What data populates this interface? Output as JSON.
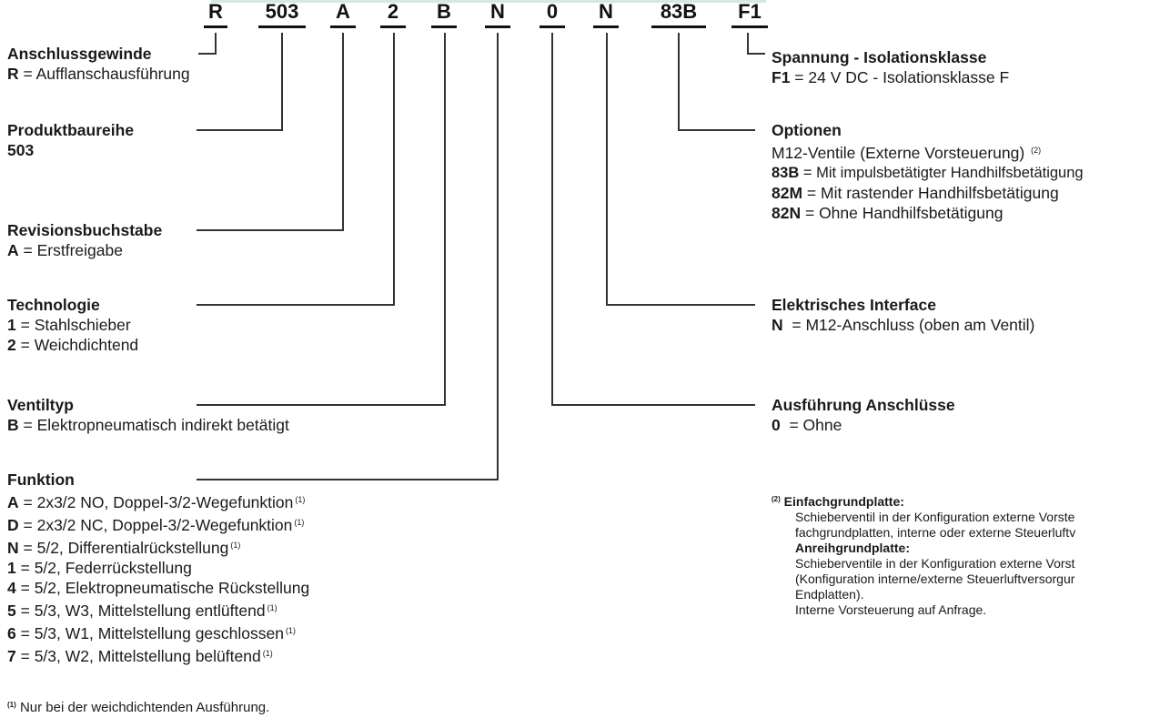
{
  "code": [
    "R",
    "503",
    "A",
    "2",
    "B",
    "N",
    "0",
    "N",
    "83B",
    "F1"
  ],
  "left": [
    {
      "id": "anschluss",
      "title": "Anschlussgewinde",
      "rows": [
        {
          "key": "R",
          "sep": " = ",
          "text": "Aufflanschausführung"
        }
      ]
    },
    {
      "id": "produkt",
      "title": "Produktbaureihe",
      "rows": [
        {
          "key": "503",
          "sep": "",
          "text": ""
        }
      ]
    },
    {
      "id": "revision",
      "title": "Revisionsbuchstabe",
      "rows": [
        {
          "key": "A",
          "sep": " = ",
          "text": "Erstfreigabe"
        }
      ]
    },
    {
      "id": "technologie",
      "title": "Technologie",
      "rows": [
        {
          "key": "1",
          "sep": " = ",
          "text": "Stahlschieber"
        },
        {
          "key": "2",
          "sep": " = ",
          "text": "Weichdichtend"
        }
      ]
    },
    {
      "id": "ventiltyp",
      "title": "Ventiltyp",
      "rows": [
        {
          "key": "B",
          "sep": " = ",
          "text": "Elektropneumatisch indirekt betätigt"
        }
      ]
    },
    {
      "id": "funktion",
      "title": "Funktion",
      "rows": [
        {
          "key": "A",
          "sep": " = ",
          "text": "2x3/2 NO, Doppel-3/2-Wegefunktion",
          "fn": "(1)"
        },
        {
          "key": "D",
          "sep": " = ",
          "text": "2x3/2 NC, Doppel-3/2-Wegefunktion",
          "fn": "(1)"
        },
        {
          "key": "N",
          "sep": " = ",
          "text": "5/2, Differentialrückstellung",
          "fn": "(1)"
        },
        {
          "key": "1",
          "sep": " = ",
          "text": "5/2, Federrückstellung"
        },
        {
          "key": "4",
          "sep": " = ",
          "text": "5/2, Elektropneumatische Rückstellung"
        },
        {
          "key": "5",
          "sep": " = ",
          "text": "5/3, W3, Mittelstellung entlüftend",
          "fn": "(1)"
        },
        {
          "key": "6",
          "sep": " = ",
          "text": "5/3, W1, Mittelstellung geschlossen",
          "fn": "(1)"
        },
        {
          "key": "7",
          "sep": " = ",
          "text": "5/3, W2, Mittelstellung belüftend",
          "fn": "(1)"
        }
      ]
    }
  ],
  "footnote1": {
    "mark": "(1)",
    "text": "Nur bei der weichdichtenden Ausführung."
  },
  "right": [
    {
      "id": "spannung",
      "title": "Spannung - Isolationsklasse",
      "rows": [
        {
          "key": "F1",
          "sep": " = ",
          "text": "24 V DC - Isolationsklasse F"
        }
      ]
    },
    {
      "id": "optionen",
      "title": "Optionen",
      "intro": "M12-Ventile (Externe Vorsteuerung)",
      "intro_fn": "(2)",
      "rows": [
        {
          "key": "83B",
          "sep": " = ",
          "text": "Mit impulsbetätigter Handhilfsbetätigung"
        },
        {
          "key": "82M",
          "sep": " = ",
          "text": "Mit rastender Handhilfsbetätigung"
        },
        {
          "key": "82N",
          "sep": " = ",
          "text": "Ohne Handhilfsbetätigung"
        }
      ]
    },
    {
      "id": "interface",
      "title": "Elektrisches Interface",
      "rows": [
        {
          "key": "N",
          "sep": "  = ",
          "text": "M12-Anschluss (oben am Ventil)"
        }
      ]
    },
    {
      "id": "anschluesse",
      "title": "Ausführung Anschlüsse",
      "rows": [
        {
          "key": "0",
          "sep": "  = ",
          "text": "Ohne"
        }
      ]
    }
  ],
  "footnote2": {
    "mark": "(2)",
    "h1": "Einfachgrundplatte:",
    "l1": "Schieberventil in der Konfiguration externe Vorste",
    "l2": "fachgrundplatten, interne oder externe Steuerluftv",
    "h2": "Anreihgrundplatte:",
    "l3": "Schieberventile in der Konfiguration externe Vorst",
    "l4": "(Konfiguration interne/externe Steuerluftversorgur",
    "l5": "Endplatten).",
    "l6": "Interne Vorsteuerung auf Anfrage."
  }
}
